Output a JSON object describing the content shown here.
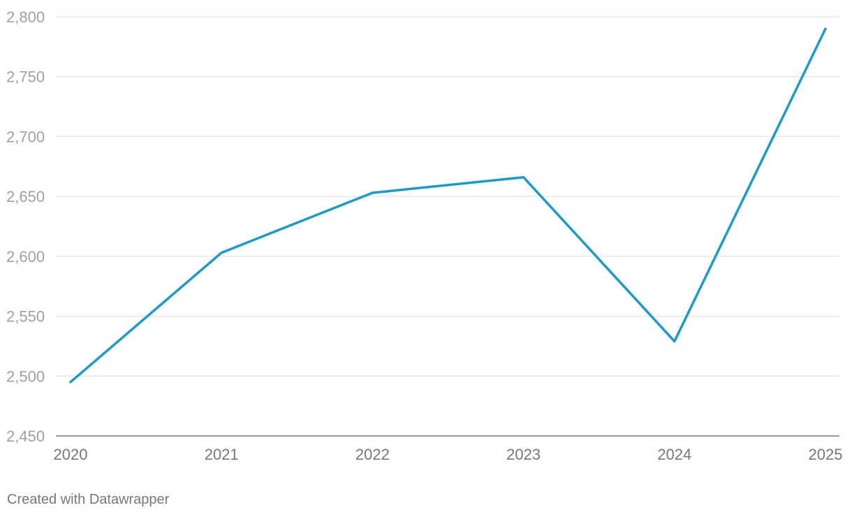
{
  "chart_data": {
    "type": "line",
    "x": [
      "2020",
      "2021",
      "2022",
      "2023",
      "2024",
      "2025"
    ],
    "series": [
      {
        "values": [
          2495,
          2603,
          2653,
          2666,
          2529,
          2790
        ],
        "color": "#1d9ac6"
      }
    ],
    "ylim": [
      2450,
      2800
    ],
    "yticks": [
      2800,
      2750,
      2700,
      2650,
      2600,
      2550,
      2500,
      2450
    ],
    "ytick_labels": [
      "2,800",
      "2,750",
      "2,700",
      "2,650",
      "2,600",
      "2,550",
      "2,500",
      "2,450"
    ],
    "grid": true,
    "legend": "none"
  },
  "footer": {
    "credit": "Created with Datawrapper"
  }
}
